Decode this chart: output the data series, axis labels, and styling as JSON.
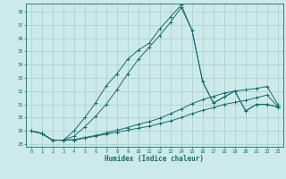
{
  "title": "",
  "xlabel": "Humidex (Indice chaleur)",
  "bg_color": "#cdeaea",
  "grid_color": "#a8cccc",
  "line_color": "#1a6b6b",
  "xlim": [
    -0.5,
    23.5
  ],
  "ylim": [
    27.8,
    38.6
  ],
  "xticks": [
    0,
    1,
    2,
    3,
    4,
    5,
    6,
    7,
    8,
    9,
    10,
    11,
    12,
    13,
    14,
    15,
    16,
    17,
    18,
    19,
    20,
    21,
    22,
    23
  ],
  "yticks": [
    28,
    29,
    30,
    31,
    32,
    33,
    34,
    35,
    36,
    37,
    38
  ],
  "line1": [
    29.0,
    28.8,
    28.3,
    28.3,
    28.3,
    28.45,
    28.6,
    28.75,
    28.9,
    29.05,
    29.2,
    29.35,
    29.55,
    29.75,
    30.0,
    30.3,
    30.55,
    30.75,
    31.0,
    31.15,
    31.3,
    31.5,
    31.7,
    30.85
  ],
  "line2": [
    29.0,
    28.8,
    28.3,
    28.3,
    28.35,
    28.5,
    28.65,
    28.85,
    29.05,
    29.25,
    29.5,
    29.7,
    29.95,
    30.3,
    30.65,
    31.05,
    31.35,
    31.6,
    31.85,
    32.0,
    32.1,
    32.2,
    32.35,
    31.0
  ],
  "line3": [
    29.0,
    28.8,
    28.3,
    28.3,
    28.6,
    29.3,
    30.1,
    31.0,
    32.1,
    33.3,
    34.4,
    35.3,
    36.2,
    37.2,
    38.3,
    36.6,
    32.7,
    31.1,
    31.55,
    32.0,
    30.5,
    31.0,
    31.0,
    30.8
  ],
  "line4": [
    29.0,
    28.8,
    28.3,
    28.3,
    29.0,
    30.0,
    31.1,
    32.4,
    33.3,
    34.4,
    35.1,
    35.6,
    36.7,
    37.6,
    38.5,
    36.6,
    32.7,
    31.1,
    31.55,
    32.0,
    30.5,
    31.0,
    31.0,
    30.8
  ]
}
